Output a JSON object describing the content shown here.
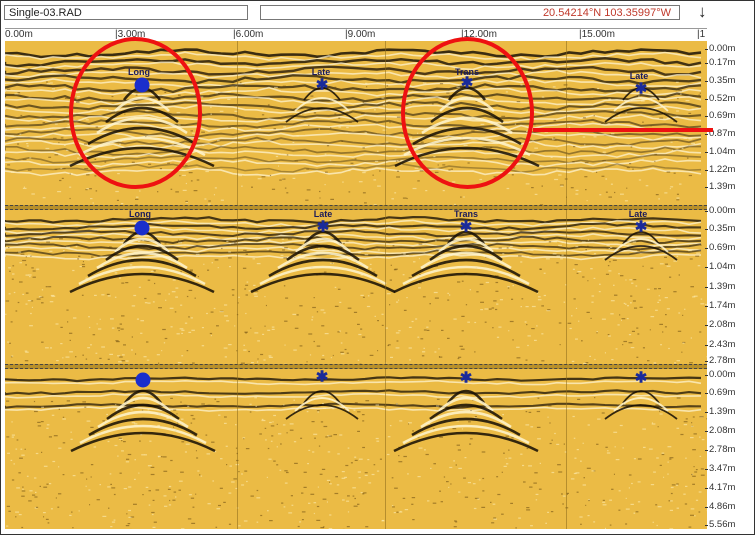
{
  "window": {
    "file_title": "Single-03.RAD",
    "coordinates": "20.54214°N 103.35997°W",
    "scroll_arrow_icon": "down-arrow-icon"
  },
  "distance_ruler": [
    "0.00m",
    "|3.00m",
    "|6.00m",
    "|9.00m",
    "|12.00m",
    "|15.00m",
    "|1"
  ],
  "depth_scales": [
    [
      "0.00m",
      "0.17m",
      "0.35m",
      "0.52m",
      "0.69m",
      "0.87m",
      "1.04m",
      "1.22m",
      "1.39m"
    ],
    [
      "0.00m",
      "0.35m",
      "0.69m",
      "1.04m",
      "1.39m",
      "1.74m",
      "2.08m",
      "2.43m",
      "2.78m"
    ],
    [
      "0.00m",
      "0.69m",
      "1.39m",
      "2.08m",
      "2.78m",
      "3.47m",
      "4.17m",
      "4.86m",
      "5.56m"
    ]
  ],
  "section_labels": {
    "row1": [
      "Long",
      "Late",
      "Trans",
      "Late"
    ],
    "row2": [
      "Long",
      "Late",
      "Trans",
      "Late"
    ]
  },
  "colors": {
    "background_yellow": "#e8b73a",
    "annotation_red": "#ee1111",
    "marker_blue": "#1a2ecc"
  }
}
